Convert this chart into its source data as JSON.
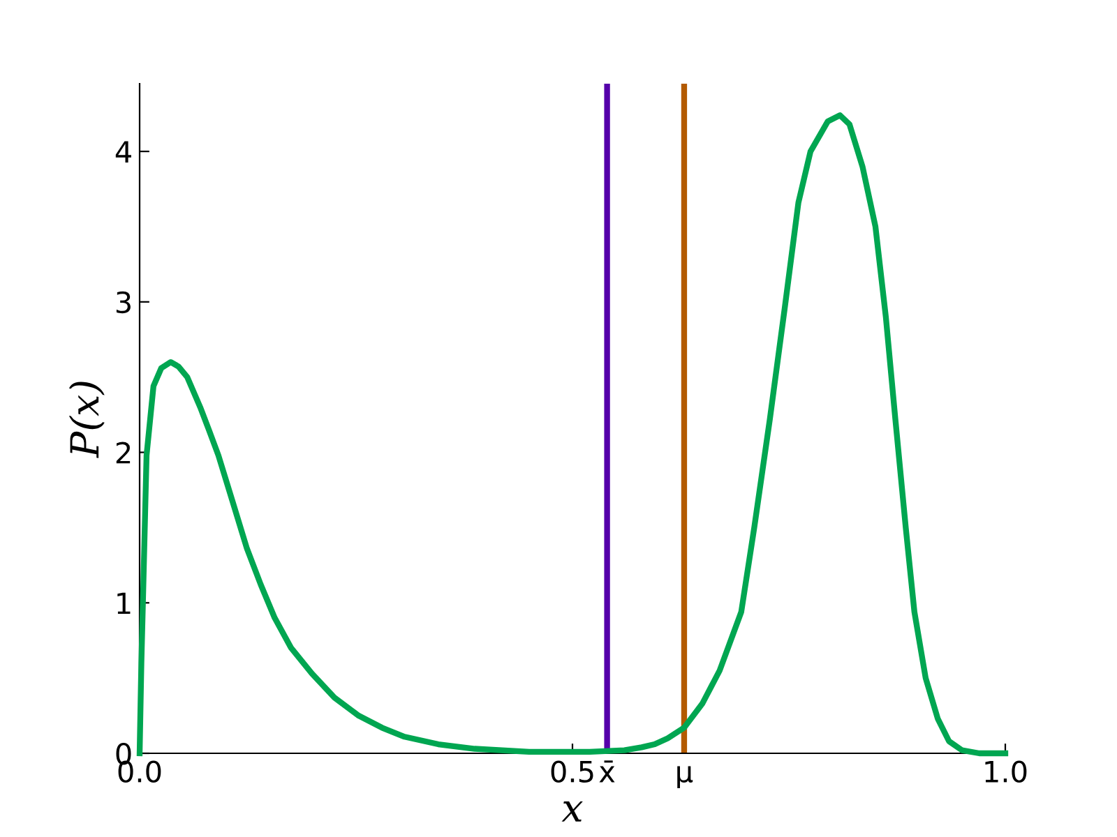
{
  "chart_data": {
    "type": "line",
    "xlabel": "x",
    "ylabel": "P(x)",
    "xlim": [
      0,
      1
    ],
    "ylim": [
      0,
      4.45
    ],
    "xticks": [
      {
        "value": 0,
        "label": "0.0"
      },
      0.5,
      {
        "value": 1,
        "label": "1.0"
      },
      {
        "value": 0.54,
        "label": "x̄"
      },
      {
        "value": 0.629,
        "label": "μ"
      }
    ],
    "yticks": [
      0,
      1,
      2,
      3,
      4
    ],
    "grid": false,
    "legend": false,
    "marker": "none",
    "line_style": "solid",
    "series": [
      {
        "color": "#00a651",
        "x": [
          0,
          0.002,
          0.004,
          0.008,
          0.016,
          0.025,
          0.036,
          0.045,
          0.055,
          0.07,
          0.08,
          0.091,
          0.107,
          0.124,
          0.14,
          0.156,
          0.175,
          0.199,
          0.225,
          0.253,
          0.28,
          0.306,
          0.345,
          0.387,
          0.45,
          0.52,
          0.56,
          0.58,
          0.595,
          0.61,
          0.629,
          0.65,
          0.67,
          0.695,
          0.71,
          0.728,
          0.745,
          0.761,
          0.775,
          0.795,
          0.809,
          0.82,
          0.835,
          0.85,
          0.862,
          0.873,
          0.885,
          0.895,
          0.908,
          0.922,
          0.935,
          0.95,
          0.97,
          1.0
        ],
        "values": [
          0,
          0.6,
          1.05,
          1.98,
          2.44,
          2.56,
          2.6,
          2.57,
          2.5,
          2.3,
          2.15,
          1.98,
          1.68,
          1.36,
          1.12,
          0.9,
          0.7,
          0.53,
          0.37,
          0.25,
          0.17,
          0.11,
          0.06,
          0.03,
          0.01,
          0.01,
          0.02,
          0.04,
          0.06,
          0.1,
          0.17,
          0.33,
          0.55,
          0.94,
          1.5,
          2.22,
          2.95,
          3.66,
          4.0,
          4.2,
          4.24,
          4.18,
          3.9,
          3.5,
          2.9,
          2.22,
          1.5,
          0.94,
          0.5,
          0.23,
          0.08,
          0.02,
          0,
          0
        ]
      }
    ],
    "ref_lines": [
      {
        "axis": "x",
        "value": 0.54,
        "color": "#5500aa"
      },
      {
        "axis": "x",
        "value": 0.629,
        "color": "#b35a00"
      }
    ]
  }
}
